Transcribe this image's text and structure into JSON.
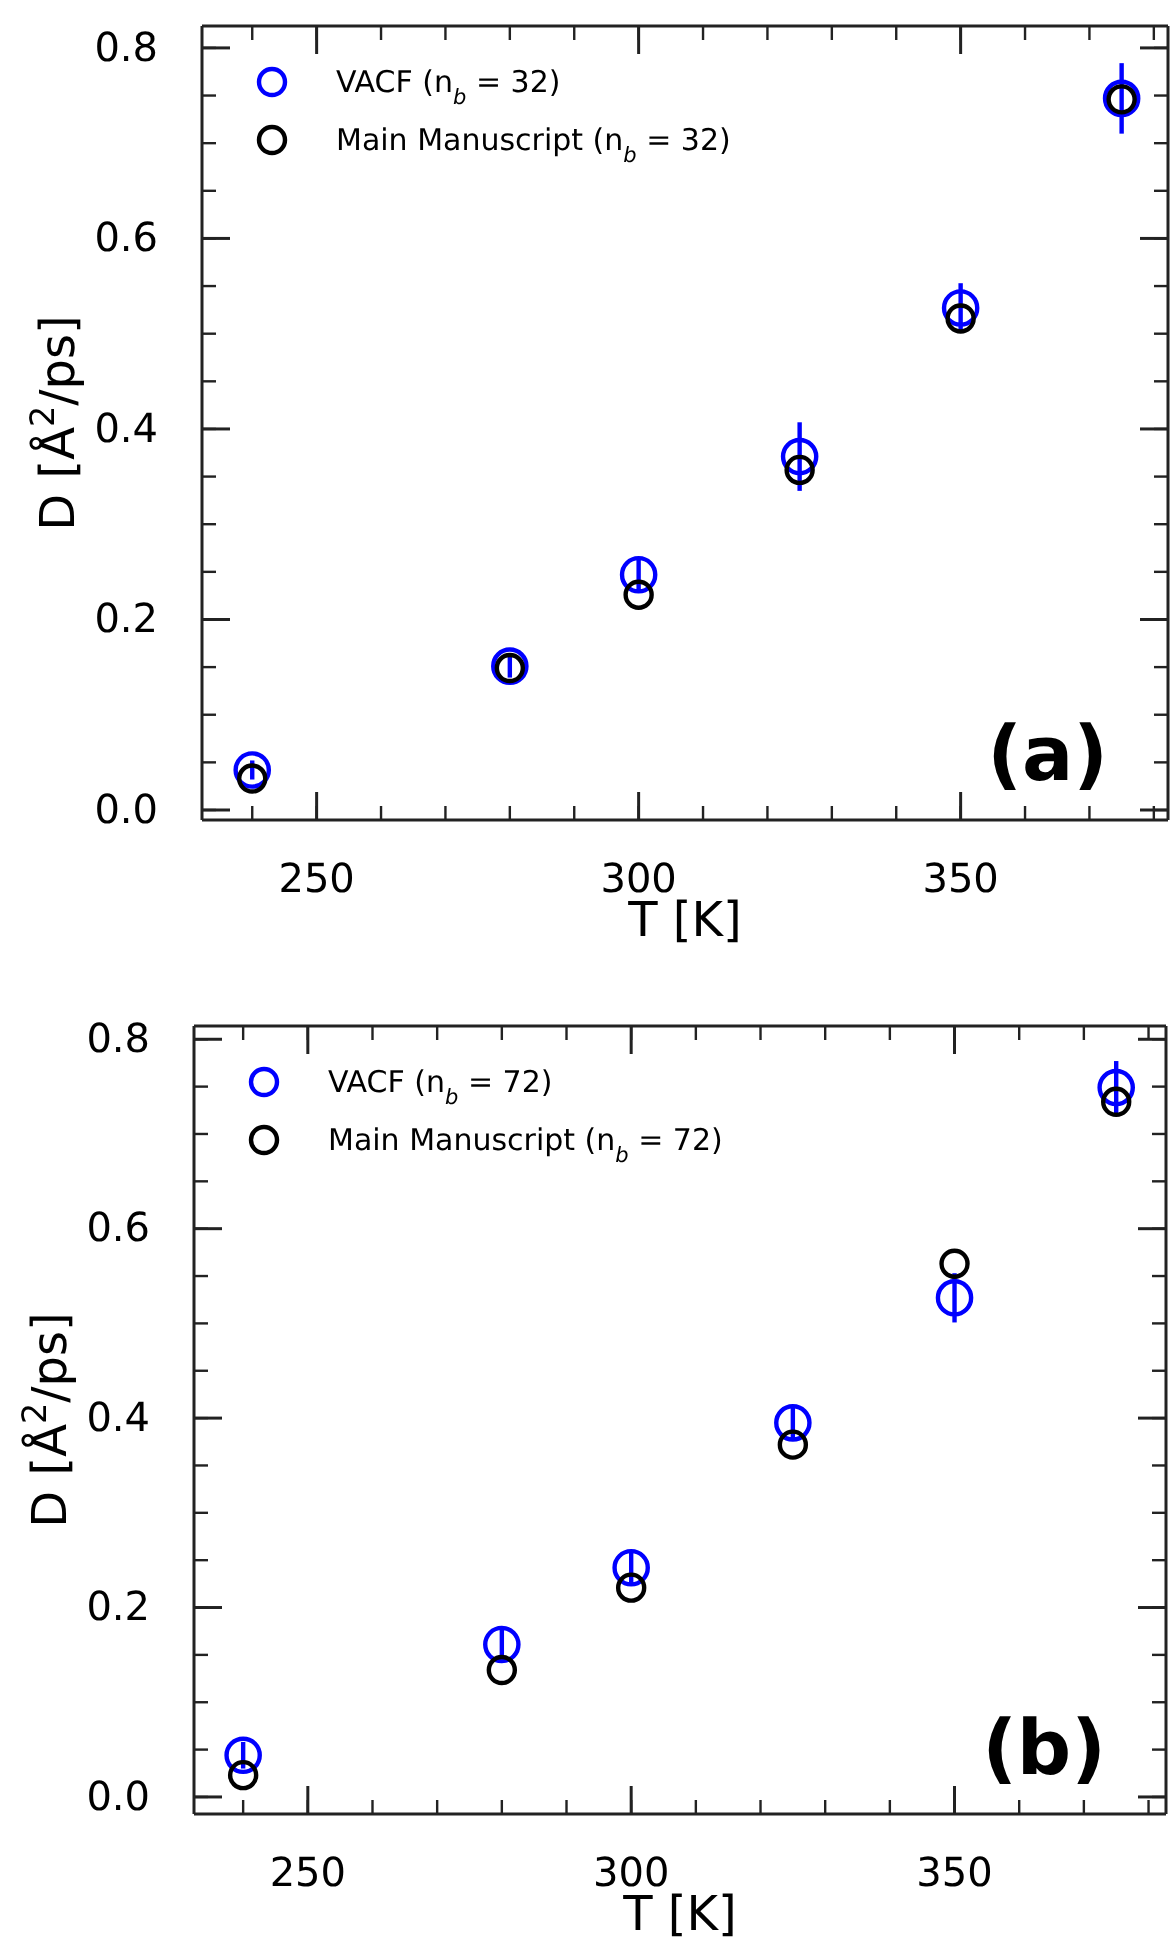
{
  "chart_data": [
    {
      "type": "scatter",
      "xlabel": "T [K]",
      "ylabel": "D [Å$^{2}$/ps]",
      "x": [
        240,
        280,
        300,
        325,
        350,
        375
      ],
      "xlim": [
        232.2,
        382.2
      ],
      "xticks": [
        250,
        300,
        350
      ],
      "ylim": [
        -0.0105,
        0.823
      ],
      "yticks": [
        {
          "value": 0,
          "label": "0.0"
        },
        {
          "value": 0.2,
          "label": "0.2"
        },
        {
          "value": 0.4,
          "label": "0.4"
        },
        {
          "value": 0.6,
          "label": "0.6"
        },
        {
          "value": 0.8,
          "label": "0.8"
        }
      ],
      "marker": "circle",
      "legend": "top left",
      "grid": false,
      "annotations": [
        "(a)"
      ],
      "series": [
        {
          "name": "VACF (n$_{b}$ = 32)",
          "color": "#0000ff",
          "values": [
            0.042,
            0.151,
            0.247,
            0.371,
            0.527,
            0.747
          ],
          "errors": [
            0.01,
            0.012,
            0.016,
            0.036,
            0.026,
            0.037
          ]
        },
        {
          "name": "Main Manuscript (n$_{b}$ = 32)",
          "color": "#000000",
          "values": [
            0.033,
            0.149,
            0.226,
            0.357,
            0.516,
            0.746
          ]
        }
      ]
    },
    {
      "type": "scatter",
      "xlabel": "T [K]",
      "ylabel": "D [Å$^{2}$/ps]",
      "x": [
        240,
        280,
        300,
        325,
        350,
        375
      ],
      "xlim": [
        232.4,
        382.7
      ],
      "xticks": [
        250,
        300,
        350
      ],
      "ylim": [
        -0.018,
        0.814
      ],
      "yticks": [
        {
          "value": 0,
          "label": "0.0"
        },
        {
          "value": 0.2,
          "label": "0.2"
        },
        {
          "value": 0.4,
          "label": "0.4"
        },
        {
          "value": 0.6,
          "label": "0.6"
        },
        {
          "value": 0.8,
          "label": "0.8"
        }
      ],
      "marker": "circle",
      "legend": "top left",
      "grid": false,
      "annotations": [
        "(b)"
      ],
      "series": [
        {
          "name": "VACF (n$_{b}$ = 72)",
          "color": "#0000ff",
          "values": [
            0.044,
            0.161,
            0.242,
            0.395,
            0.527,
            0.749
          ],
          "errors": [
            0.014,
            0.016,
            0.016,
            0.018,
            0.026,
            0.028
          ]
        },
        {
          "name": "Main Manuscript (n$_{b}$ = 72)",
          "color": "#000000",
          "values": [
            0.023,
            0.134,
            0.221,
            0.372,
            0.563,
            0.734
          ]
        }
      ]
    }
  ]
}
